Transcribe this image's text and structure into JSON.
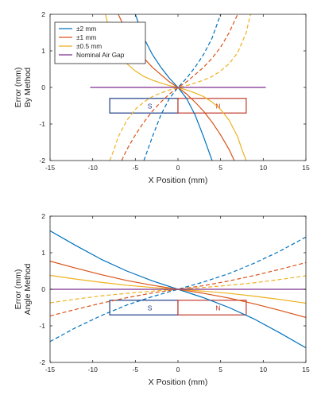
{
  "chart_data": [
    {
      "type": "line",
      "title": "",
      "xlabel": "X Position (mm)",
      "ylabel_lines": [
        "Error (mm)",
        "By Method"
      ],
      "xlim": [
        -15,
        15
      ],
      "ylim": [
        -2,
        2
      ],
      "xticks": [
        -15,
        -10,
        -5,
        0,
        5,
        10,
        15
      ],
      "yticks": [
        -2,
        -1,
        0,
        1,
        2
      ],
      "grid": false,
      "legend_position": "top-left",
      "legend": [
        {
          "label": "±2 mm",
          "color": "#0072BD"
        },
        {
          "label": "±1 mm",
          "color": "#D95319"
        },
        {
          "label": "±0.5 mm",
          "color": "#EDB120"
        },
        {
          "label": "Nominal Air Gap",
          "color": "#7E2F8E"
        }
      ],
      "magnet": {
        "x": [
          -8,
          8
        ],
        "y": [
          -0.3,
          -0.7
        ],
        "labels": [
          "S",
          "N"
        ],
        "colors": [
          "#1f3c88",
          "#c0392b"
        ]
      },
      "series": [
        {
          "name": "±2 mm",
          "color": "#0072BD",
          "style": "solid",
          "x": [
            -5,
            -4,
            -3,
            -2,
            -1,
            0,
            1,
            2,
            3,
            4
          ],
          "y": [
            2.0,
            1.35,
            0.9,
            0.55,
            0.25,
            0,
            -0.3,
            -0.75,
            -1.35,
            -2.0
          ]
        },
        {
          "name": "±2 mm",
          "color": "#0072BD",
          "style": "dashed",
          "x": [
            -4,
            -3,
            -2,
            -1,
            0,
            1,
            2,
            3,
            4,
            5
          ],
          "y": [
            -2.0,
            -1.35,
            -0.75,
            -0.3,
            0,
            0.25,
            0.55,
            0.9,
            1.35,
            2.0
          ]
        },
        {
          "name": "±1 mm",
          "color": "#D95319",
          "style": "solid",
          "x": [
            -7,
            -6,
            -5,
            -4,
            -3,
            -2,
            -1,
            0,
            1,
            2,
            3,
            4,
            5,
            6,
            6.6
          ],
          "y": [
            2.0,
            1.5,
            1.1,
            0.8,
            0.55,
            0.35,
            0.15,
            0,
            -0.18,
            -0.4,
            -0.65,
            -0.95,
            -1.3,
            -1.7,
            -2.0
          ]
        },
        {
          "name": "±1 mm",
          "color": "#D95319",
          "style": "dashed",
          "x": [
            -6.6,
            -6,
            -5,
            -4,
            -3,
            -2,
            -1,
            0,
            1,
            2,
            3,
            4,
            5,
            6,
            7
          ],
          "y": [
            -2.0,
            -1.7,
            -1.3,
            -0.95,
            -0.65,
            -0.4,
            -0.18,
            0,
            0.15,
            0.35,
            0.55,
            0.8,
            1.1,
            1.5,
            2.0
          ]
        },
        {
          "name": "±0.5 mm",
          "color": "#EDB120",
          "style": "solid",
          "x": [
            -8.5,
            -8,
            -7,
            -6,
            -5,
            -4,
            -3,
            -2,
            -1,
            0,
            1,
            2,
            3,
            4,
            5,
            6,
            7,
            7.5,
            8
          ],
          "y": [
            2.0,
            1.5,
            0.95,
            0.65,
            0.45,
            0.3,
            0.2,
            0.12,
            0.05,
            0,
            -0.07,
            -0.15,
            -0.25,
            -0.4,
            -0.6,
            -0.9,
            -1.35,
            -1.7,
            -2.0
          ]
        },
        {
          "name": "±0.5 mm",
          "color": "#EDB120",
          "style": "dashed",
          "x": [
            -8,
            -7.5,
            -7,
            -6,
            -5,
            -4,
            -3,
            -2,
            -1,
            0,
            1,
            2,
            3,
            4,
            5,
            6,
            7,
            8,
            8.5
          ],
          "y": [
            -2.0,
            -1.7,
            -1.35,
            -0.9,
            -0.6,
            -0.4,
            -0.25,
            -0.15,
            -0.07,
            0,
            0.05,
            0.12,
            0.2,
            0.3,
            0.45,
            0.65,
            0.95,
            1.5,
            2.0
          ]
        },
        {
          "name": "Nominal Air Gap",
          "color": "#7E2F8E",
          "style": "solid",
          "x": [
            -10.3,
            10.3
          ],
          "y": [
            0,
            0
          ]
        }
      ]
    },
    {
      "type": "line",
      "title": "",
      "xlabel": "X Position (mm)",
      "ylabel_lines": [
        "Error (mm)",
        "Angle Method"
      ],
      "xlim": [
        -15,
        15
      ],
      "ylim": [
        -2,
        2
      ],
      "xticks": [
        -15,
        -10,
        -5,
        0,
        5,
        10,
        15
      ],
      "yticks": [
        -2,
        -1,
        0,
        1,
        2
      ],
      "grid": false,
      "magnet": {
        "x": [
          -8,
          8
        ],
        "y": [
          -0.3,
          -0.7
        ],
        "labels": [
          "S",
          "N"
        ],
        "colors": [
          "#1f3c88",
          "#c0392b"
        ]
      },
      "series": [
        {
          "name": "±2 mm",
          "color": "#0072BD",
          "style": "solid",
          "x": [
            -15,
            -12,
            -9,
            -6,
            -3,
            0,
            3,
            6,
            9,
            12,
            15
          ],
          "y": [
            1.6,
            1.2,
            0.82,
            0.5,
            0.23,
            0,
            -0.23,
            -0.5,
            -0.82,
            -1.2,
            -1.6
          ]
        },
        {
          "name": "±2 mm",
          "color": "#0072BD",
          "style": "dashed",
          "x": [
            -15,
            -12,
            -9,
            -6,
            -3,
            0,
            3,
            6,
            9,
            12,
            15
          ],
          "y": [
            -1.43,
            -1.05,
            -0.72,
            -0.43,
            -0.2,
            0,
            0.2,
            0.43,
            0.72,
            1.05,
            1.43
          ]
        },
        {
          "name": "±1 mm",
          "color": "#D95319",
          "style": "solid",
          "x": [
            -15,
            -12,
            -9,
            -6,
            -3,
            0,
            3,
            6,
            9,
            12,
            15
          ],
          "y": [
            0.77,
            0.58,
            0.4,
            0.24,
            0.11,
            0,
            -0.11,
            -0.24,
            -0.4,
            -0.58,
            -0.77
          ]
        },
        {
          "name": "±1 mm",
          "color": "#D95319",
          "style": "dashed",
          "x": [
            -15,
            -12,
            -9,
            -6,
            -3,
            0,
            3,
            6,
            9,
            12,
            15
          ],
          "y": [
            -0.73,
            -0.55,
            -0.38,
            -0.23,
            -0.1,
            0,
            0.1,
            0.23,
            0.38,
            0.55,
            0.73
          ]
        },
        {
          "name": "±0.5 mm",
          "color": "#EDB120",
          "style": "solid",
          "x": [
            -15,
            -12,
            -9,
            -6,
            -3,
            0,
            3,
            6,
            9,
            12,
            15
          ],
          "y": [
            0.38,
            0.28,
            0.19,
            0.11,
            0.05,
            0,
            -0.05,
            -0.11,
            -0.19,
            -0.28,
            -0.38
          ]
        },
        {
          "name": "±0.5 mm",
          "color": "#EDB120",
          "style": "dashed",
          "x": [
            -15,
            -12,
            -9,
            -6,
            -3,
            0,
            3,
            6,
            9,
            12,
            15
          ],
          "y": [
            -0.37,
            -0.27,
            -0.18,
            -0.11,
            -0.05,
            0,
            0.05,
            0.11,
            0.18,
            0.27,
            0.37
          ]
        },
        {
          "name": "Nominal Air Gap",
          "color": "#7E2F8E",
          "style": "solid",
          "x": [
            -15,
            15
          ],
          "y": [
            0,
            0
          ]
        }
      ]
    }
  ]
}
